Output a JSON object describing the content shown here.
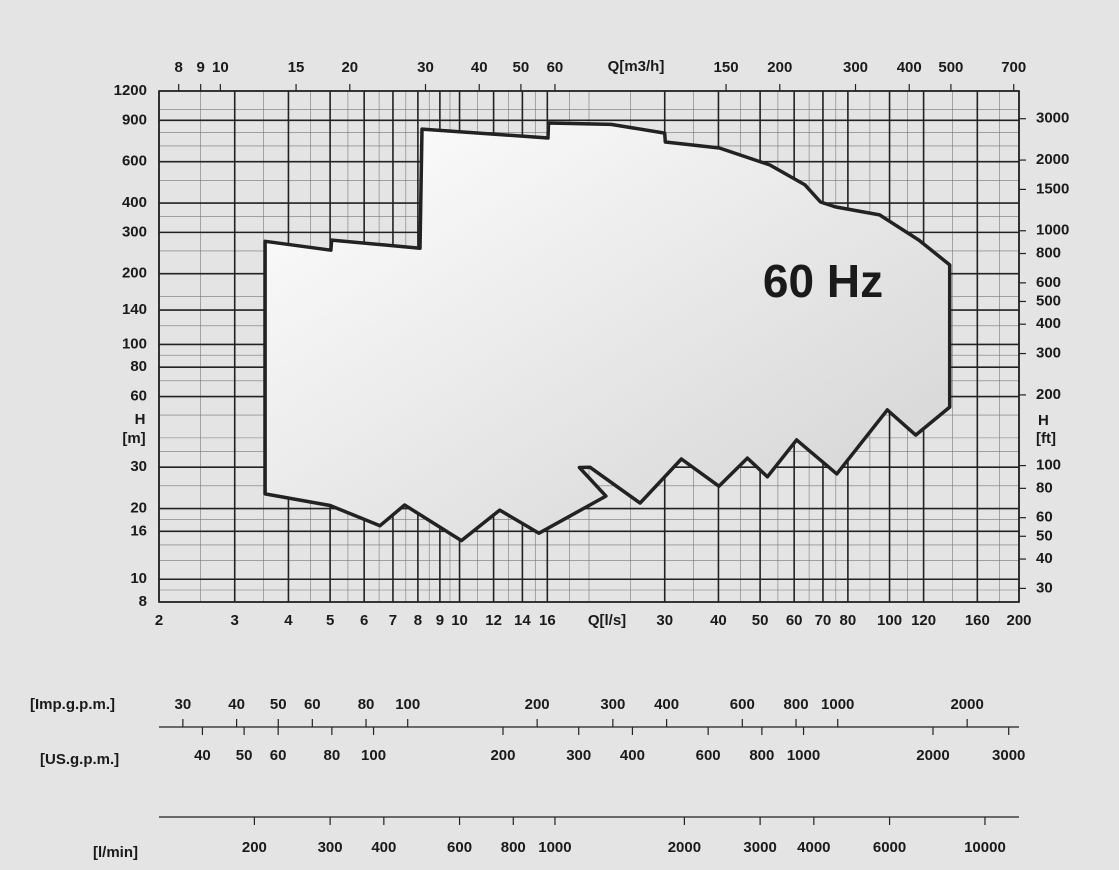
{
  "chart_data": {
    "type": "envelope",
    "annotation": "60 Hz",
    "x_label": "Q[l/s]",
    "xlim": [
      2,
      200
    ],
    "xticks": [
      2,
      3,
      4,
      5,
      6,
      7,
      8,
      9,
      10,
      12,
      14,
      16,
      30,
      40,
      50,
      60,
      70,
      80,
      100,
      120,
      160,
      200
    ],
    "x_minor_ticks": [
      2.5,
      3.5,
      4.5,
      5.5,
      6.5,
      7.5,
      8.5,
      9.5,
      11,
      13,
      15,
      18,
      20,
      25,
      35,
      45,
      55,
      65,
      75,
      90,
      110,
      140,
      180
    ],
    "y_label": [
      "H",
      "[m]"
    ],
    "ylim": [
      8,
      1200
    ],
    "yticks": [
      8,
      10,
      16,
      20,
      30,
      60,
      80,
      100,
      140,
      200,
      300,
      400,
      600,
      900,
      1200
    ],
    "y_minor_ticks": [
      9,
      12,
      14,
      18,
      25,
      35,
      40,
      50,
      70,
      90,
      120,
      160,
      250,
      350,
      500,
      700,
      800,
      1000
    ],
    "log_scale": true,
    "grid": true,
    "x2_label": "Q[m3/h]",
    "x2lim": [
      7.2,
      720
    ],
    "x2ticks": [
      8,
      9,
      10,
      15,
      20,
      30,
      40,
      50,
      60,
      150,
      200,
      300,
      400,
      500,
      700
    ],
    "y2_label": [
      "H",
      "[ft]"
    ],
    "y2lim": [
      26.25,
      3937
    ],
    "y2ticks": [
      30,
      40,
      50,
      60,
      80,
      100,
      200,
      300,
      400,
      500,
      600,
      800,
      1000,
      1500,
      2000,
      3000
    ],
    "extra_axes": [
      {
        "label": "[Imp.g.p.m.]",
        "xlim": [
          26.4,
          2640
        ],
        "ticks": [
          30,
          40,
          50,
          60,
          80,
          100,
          200,
          300,
          400,
          600,
          800,
          1000,
          2000
        ]
      },
      {
        "label": "[US.g.p.m.]",
        "xlim": [
          31.7,
          3170
        ],
        "ticks": [
          40,
          50,
          60,
          80,
          100,
          200,
          300,
          400,
          600,
          800,
          1000,
          2000,
          3000
        ]
      },
      {
        "label": "[l/min]",
        "xlim": [
          120,
          12000
        ],
        "ticks": [
          200,
          300,
          400,
          600,
          800,
          1000,
          2000,
          3000,
          4000,
          6000,
          10000
        ]
      }
    ],
    "x": [
      3.53,
      5.02,
      5.04,
      8.09,
      8.18,
      16.06,
      16.1,
      22.5,
      30.0,
      30.1,
      40.2,
      52.7,
      63.6,
      69.1,
      74.8,
      94.8,
      117,
      138,
      138,
      115,
      98.8,
      75.4,
      60.8,
      52.0,
      46.7,
      40.1,
      32.8,
      26.3,
      20.1,
      19.0,
      21.9,
      15.3,
      12.4,
      10.1,
      7.45,
      6.53,
      5.0,
      3.53
    ],
    "values": [
      275,
      252,
      278,
      257,
      826,
      757,
      877,
      865,
      794,
      728,
      686,
      581,
      478,
      404,
      385,
      356,
      278,
      218,
      54.1,
      41.1,
      52.6,
      28.1,
      39.2,
      27.3,
      32.8,
      24.9,
      32.5,
      21.1,
      30.0,
      29.9,
      22.6,
      15.7,
      19.7,
      14.6,
      20.7,
      16.9,
      20.6,
      23.1
    ],
    "color": "#222222"
  }
}
